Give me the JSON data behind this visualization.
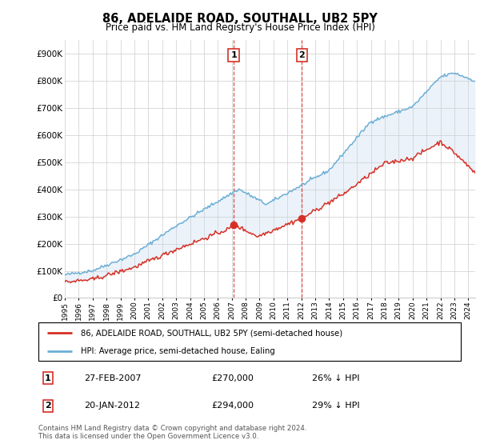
{
  "title": "86, ADELAIDE ROAD, SOUTHALL, UB2 5PY",
  "subtitle": "Price paid vs. HM Land Registry's House Price Index (HPI)",
  "hpi_label": "HPI: Average price, semi-detached house, Ealing",
  "property_label": "86, ADELAIDE ROAD, SOUTHALL, UB2 5PY (semi-detached house)",
  "footer": "Contains HM Land Registry data © Crown copyright and database right 2024.\nThis data is licensed under the Open Government Licence v3.0.",
  "sale1": {
    "label": "1",
    "date": "27-FEB-2007",
    "price": 270000,
    "pct": "26% ↓ HPI",
    "x": 2007.15
  },
  "sale2": {
    "label": "2",
    "date": "20-JAN-2012",
    "price": 294000,
    "pct": "29% ↓ HPI",
    "x": 2012.05
  },
  "hpi_color": "#6baed6",
  "property_color": "#d73027",
  "shade_color": "#c6dbef",
  "ylim": [
    0,
    950000
  ],
  "xlim": [
    1995,
    2024.5
  ],
  "yticks": [
    0,
    100000,
    200000,
    300000,
    400000,
    500000,
    600000,
    700000,
    800000,
    900000
  ],
  "ytick_labels": [
    "£0",
    "£100K",
    "£200K",
    "£300K",
    "£400K",
    "£500K",
    "£600K",
    "£700K",
    "£800K",
    "£900K"
  ],
  "xticks": [
    1995,
    1996,
    1997,
    1998,
    1999,
    2000,
    2001,
    2002,
    2003,
    2004,
    2005,
    2006,
    2007,
    2008,
    2009,
    2010,
    2011,
    2012,
    2013,
    2014,
    2015,
    2016,
    2017,
    2018,
    2019,
    2020,
    2021,
    2022,
    2023,
    2024
  ]
}
